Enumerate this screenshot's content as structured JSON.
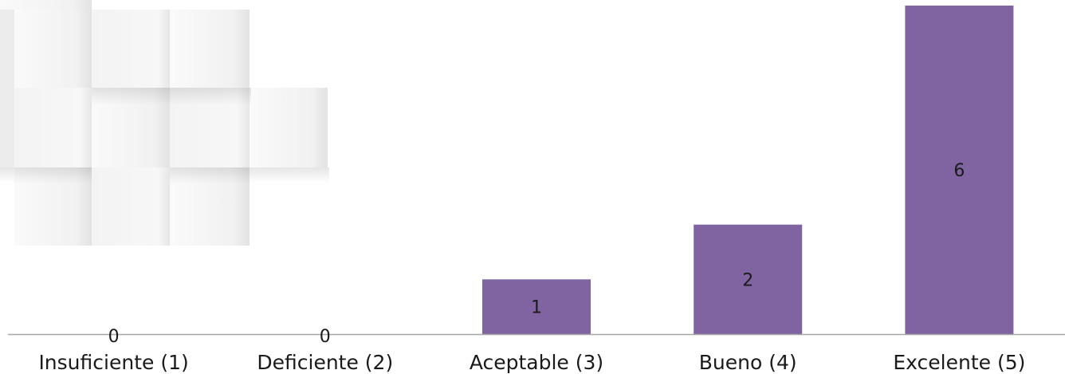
{
  "chart_data": {
    "type": "bar",
    "categories": [
      "Insuficiente (1)",
      "Deficiente (2)",
      "Aceptable (3)",
      "Bueno (4)",
      "Excelente (5)"
    ],
    "values": [
      0,
      0,
      1,
      2,
      6
    ],
    "data_labels": [
      "0",
      "0",
      "1",
      "2",
      "6"
    ],
    "title": "",
    "xlabel": "",
    "ylabel": "",
    "ylim": [
      0,
      6
    ],
    "grid": false,
    "legend": "none",
    "bar_color": "#8064a2",
    "axis_color": "#a6a6a6"
  },
  "decoration": {
    "name": "tiled-3d-paper-background"
  }
}
